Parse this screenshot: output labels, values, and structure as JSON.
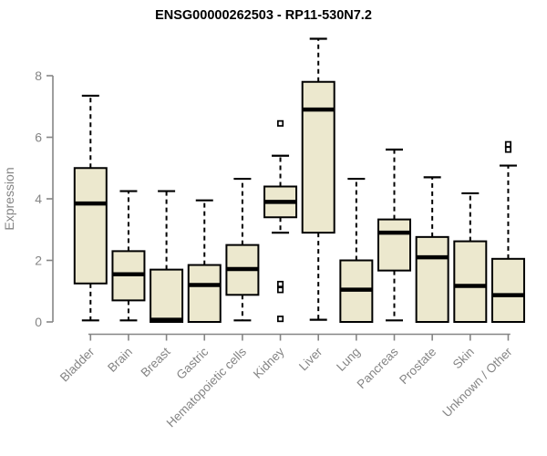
{
  "chart_data": {
    "type": "boxplot",
    "title": "ENSG00000262503 - RP11-530N7.2",
    "ylabel": "Expression",
    "xlabel": "",
    "ylim": [
      0,
      9.3
    ],
    "y_ticks": [
      0,
      2,
      4,
      6,
      8
    ],
    "grid": false,
    "legend": null,
    "categories": [
      "Bladder",
      "Brain",
      "Breast",
      "Gastric",
      "Hematopoietic cells",
      "Kidney",
      "Liver",
      "Lung",
      "Pancreas",
      "Prostate",
      "Skin",
      "Unknown / Other"
    ],
    "boxes": [
      {
        "category": "Bladder",
        "whisker_low": 0.05,
        "q1": 1.25,
        "median": 3.85,
        "q3": 5.0,
        "whisker_high": 7.35,
        "outliers": []
      },
      {
        "category": "Brain",
        "whisker_low": 0.05,
        "q1": 0.7,
        "median": 1.55,
        "q3": 2.3,
        "whisker_high": 4.25,
        "outliers": []
      },
      {
        "category": "Breast",
        "whisker_low": 0.0,
        "q1": 0.0,
        "median": 0.07,
        "q3": 1.7,
        "whisker_high": 4.25,
        "outliers": []
      },
      {
        "category": "Gastric",
        "whisker_low": 0.0,
        "q1": 0.0,
        "median": 1.2,
        "q3": 1.85,
        "whisker_high": 3.95,
        "outliers": []
      },
      {
        "category": "Hematopoietic cells",
        "whisker_low": 0.05,
        "q1": 0.88,
        "median": 1.72,
        "q3": 2.5,
        "whisker_high": 4.65,
        "outliers": []
      },
      {
        "category": "Kidney",
        "whisker_low": 2.9,
        "q1": 3.4,
        "median": 3.9,
        "q3": 4.4,
        "whisker_high": 5.4,
        "outliers": [
          6.45,
          1.23,
          1.04,
          0.1
        ]
      },
      {
        "category": "Liver",
        "whisker_low": 0.07,
        "q1": 2.9,
        "median": 6.9,
        "q3": 7.8,
        "whisker_high": 9.2,
        "outliers": []
      },
      {
        "category": "Lung",
        "whisker_low": 0.0,
        "q1": 0.0,
        "median": 1.05,
        "q3": 2.0,
        "whisker_high": 4.65,
        "outliers": []
      },
      {
        "category": "Pancreas",
        "whisker_low": 0.05,
        "q1": 1.67,
        "median": 2.9,
        "q3": 3.33,
        "whisker_high": 5.6,
        "outliers": []
      },
      {
        "category": "Prostate",
        "whisker_low": 0.0,
        "q1": 0.0,
        "median": 2.1,
        "q3": 2.76,
        "whisker_high": 4.7,
        "outliers": []
      },
      {
        "category": "Skin",
        "whisker_low": 0.0,
        "q1": 0.0,
        "median": 1.17,
        "q3": 2.62,
        "whisker_high": 4.18,
        "outliers": []
      },
      {
        "category": "Unknown / Other",
        "whisker_low": 0.0,
        "q1": 0.0,
        "median": 0.87,
        "q3": 2.05,
        "whisker_high": 5.08,
        "outliers": [
          5.77,
          5.6
        ]
      }
    ],
    "colors": {
      "background": "#FFFFFF",
      "box_fill": "#ECE8CE",
      "box_border": "#000000",
      "median": "#000000",
      "whisker": "#000000",
      "outlier_fill": "#FFFFFF",
      "outlier_border": "#000000",
      "axis": "#858585",
      "title": "#000000"
    }
  }
}
